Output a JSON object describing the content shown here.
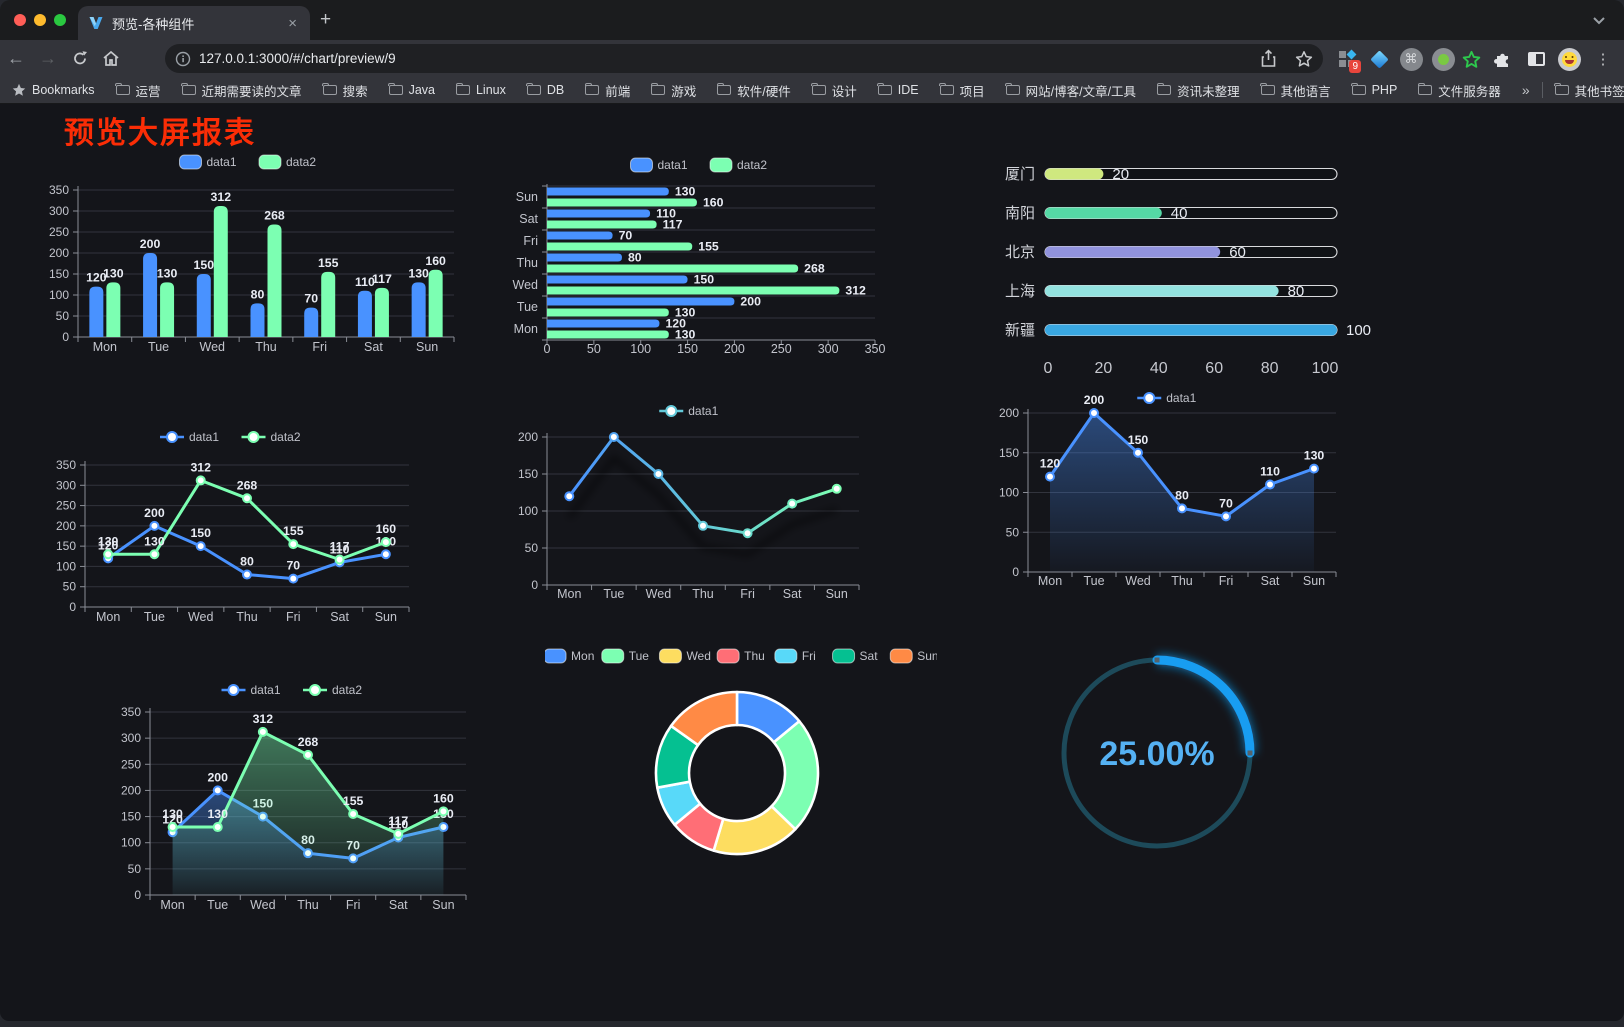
{
  "browser": {
    "traffic_lights": {
      "close": "#ff5e57",
      "minimize": "#febb2e",
      "zoom": "#2ac840"
    },
    "tab_title": "预览-各种组件",
    "url": "127.0.0.1:3000/#/chart/preview/9",
    "extension_badge": "9",
    "new_tab_label": "+",
    "close_tab_label": "×",
    "menu_dots": "⋮",
    "back_arrow": "←",
    "forward_arrow": "→",
    "bookmarks_bar": {
      "first_item": "Bookmarks",
      "folders": [
        "运营",
        "近期需要读的文章",
        "搜索",
        "Java",
        "Linux",
        "DB",
        "前端",
        "游戏",
        "软件/硬件",
        "设计",
        "IDE",
        "项目",
        "网站/博客/文章/工具",
        "资讯未整理",
        "其他语言",
        "PHP",
        "文件服务器"
      ],
      "overflow": "»",
      "other": "其他书签"
    }
  },
  "page": {
    "title": "预览大屏报表",
    "title_color": "#fb2d06",
    "background": "#14151a"
  },
  "theme": {
    "axis_line": "#8a8d96",
    "grid_line": "#32343d",
    "axis_label": "#c3c5cd",
    "value_label": "#e9ecf4",
    "legend_text": "#c0c2ca",
    "series_blue": "#4992ff",
    "series_green": "#7cffb2"
  },
  "chart_data": [
    {
      "id": "bar-grouped-vertical",
      "type": "bar",
      "orientation": "vertical",
      "categories": [
        "Mon",
        "Tue",
        "Wed",
        "Thu",
        "Fri",
        "Sat",
        "Sun"
      ],
      "series": [
        {
          "name": "data1",
          "color": "#4992ff",
          "values": [
            120,
            200,
            150,
            80,
            70,
            110,
            130
          ]
        },
        {
          "name": "data2",
          "color": "#7cffb2",
          "values": [
            130,
            130,
            312,
            268,
            155,
            117,
            160
          ]
        }
      ],
      "ylim": [
        0,
        350
      ],
      "yticks": [
        0,
        50,
        100,
        150,
        200,
        250,
        300,
        350
      ],
      "value_labels": true
    },
    {
      "id": "bar-grouped-horizontal",
      "type": "bar",
      "orientation": "horizontal",
      "categories": [
        "Mon",
        "Tue",
        "Wed",
        "Thu",
        "Fri",
        "Sat",
        "Sun"
      ],
      "series": [
        {
          "name": "data1",
          "color": "#4992ff",
          "values": [
            120,
            200,
            150,
            80,
            70,
            110,
            130
          ]
        },
        {
          "name": "data2",
          "color": "#7cffb2",
          "values": [
            130,
            130,
            312,
            268,
            155,
            117,
            160
          ]
        }
      ],
      "xlim": [
        0,
        350
      ],
      "xticks": [
        0,
        50,
        100,
        150,
        200,
        250,
        300,
        350
      ],
      "value_labels": true
    },
    {
      "id": "city-progress-bars",
      "type": "bar",
      "subtype": "capsule-progress",
      "categories": [
        "厦门",
        "南阳",
        "北京",
        "上海",
        "新疆"
      ],
      "values": [
        20,
        40,
        60,
        80,
        100
      ],
      "colors": [
        "#cfe87f",
        "#55d8a5",
        "#9193dd",
        "#93e2df",
        "#39a7e1"
      ],
      "xlim": [
        0,
        100
      ],
      "xticks": [
        0,
        20,
        40,
        60,
        80,
        100
      ]
    },
    {
      "id": "line-two-series",
      "type": "line",
      "categories": [
        "Mon",
        "Tue",
        "Wed",
        "Thu",
        "Fri",
        "Sat",
        "Sun"
      ],
      "series": [
        {
          "name": "data1",
          "color": "#4992ff",
          "values": [
            120,
            200,
            150,
            80,
            70,
            110,
            130
          ]
        },
        {
          "name": "data2",
          "color": "#7cffb2",
          "values": [
            130,
            130,
            312,
            268,
            155,
            117,
            160
          ]
        }
      ],
      "ylim": [
        0,
        350
      ],
      "yticks": [
        0,
        50,
        100,
        150,
        200,
        250,
        300,
        350
      ],
      "value_labels": true
    },
    {
      "id": "line-gradient-shadow",
      "type": "line",
      "categories": [
        "Mon",
        "Tue",
        "Wed",
        "Thu",
        "Fri",
        "Sat",
        "Sun"
      ],
      "series": [
        {
          "name": "data1",
          "gradient": [
            "#4992ff",
            "#7cffb2"
          ],
          "values": [
            120,
            200,
            150,
            80,
            70,
            110,
            130
          ],
          "shadow": true
        }
      ],
      "ylim": [
        0,
        200
      ],
      "yticks": [
        0,
        50,
        100,
        150,
        200
      ],
      "value_labels": false
    },
    {
      "id": "line-area-single",
      "type": "line",
      "categories": [
        "Mon",
        "Tue",
        "Wed",
        "Thu",
        "Fri",
        "Sat",
        "Sun"
      ],
      "series": [
        {
          "name": "data1",
          "color": "#4992ff",
          "values": [
            120,
            200,
            150,
            80,
            70,
            110,
            130
          ],
          "area": true
        }
      ],
      "ylim": [
        0,
        200
      ],
      "yticks": [
        0,
        50,
        100,
        150,
        200
      ],
      "value_labels": true
    },
    {
      "id": "line-area-two-series",
      "type": "line",
      "categories": [
        "Mon",
        "Tue",
        "Wed",
        "Thu",
        "Fri",
        "Sat",
        "Sun"
      ],
      "series": [
        {
          "name": "data1",
          "color": "#4992ff",
          "values": [
            120,
            200,
            150,
            80,
            70,
            110,
            130
          ],
          "area": true
        },
        {
          "name": "data2",
          "color": "#7cffb2",
          "values": [
            130,
            130,
            312,
            268,
            155,
            117,
            160
          ],
          "area": true
        }
      ],
      "ylim": [
        0,
        350
      ],
      "yticks": [
        0,
        50,
        100,
        150,
        200,
        250,
        300,
        350
      ],
      "value_labels": true
    },
    {
      "id": "donut-days",
      "type": "pie",
      "categories": [
        "Mon",
        "Tue",
        "Wed",
        "Thu",
        "Fri",
        "Sat",
        "Sun"
      ],
      "values": [
        120,
        200,
        150,
        80,
        70,
        110,
        130
      ],
      "colors": [
        "#4992ff",
        "#7cffb2",
        "#fddd60",
        "#ff6e76",
        "#58d9f9",
        "#05c091",
        "#ff8a45"
      ]
    },
    {
      "id": "ring-gauge",
      "type": "gauge",
      "value": 25,
      "label": "25.00%",
      "colors": {
        "progress": "#189df1",
        "track": "#1d4a5a",
        "text": "#55b1f3"
      }
    }
  ]
}
